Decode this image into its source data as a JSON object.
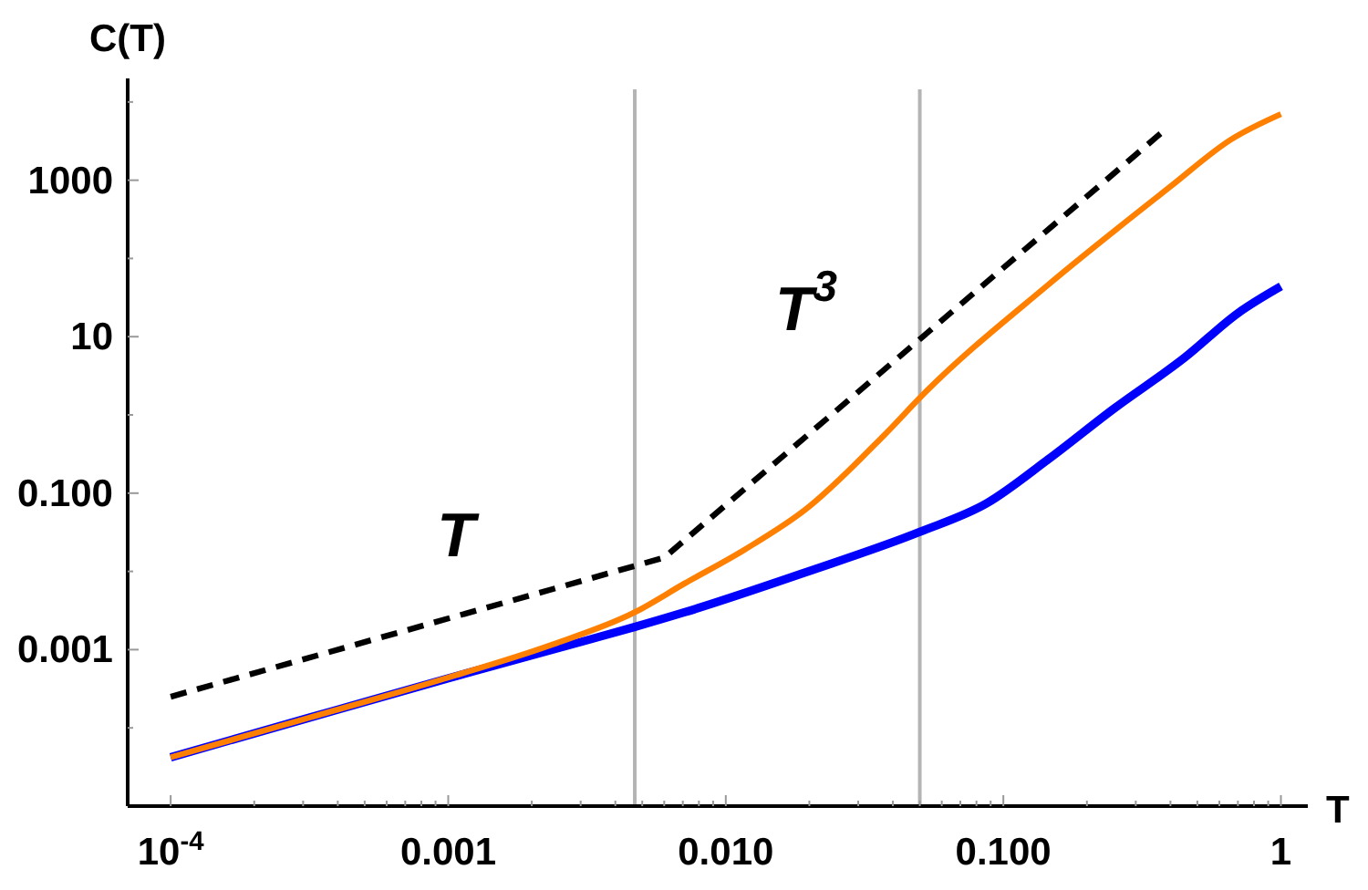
{
  "chart_data": {
    "type": "line",
    "xlabel": "T",
    "ylabel": "C(T)",
    "log": "xy",
    "grid": false,
    "marker": "none",
    "xlim": [
      7e-05,
      1.25
    ],
    "ylim": [
      1e-05,
      20000
    ],
    "xticks": [
      {
        "value": 0.0001,
        "label": "10$^{-4}$"
      },
      {
        "value": 0.0002,
        "label": null
      },
      {
        "value": 0.0003,
        "label": null
      },
      {
        "value": 0.0004,
        "label": null
      },
      {
        "value": 0.0005,
        "label": null
      },
      {
        "value": 0.0006,
        "label": null
      },
      {
        "value": 0.0007,
        "label": null
      },
      {
        "value": 0.0008,
        "label": null
      },
      {
        "value": 0.0009,
        "label": null
      },
      0.001,
      {
        "value": 0.002,
        "label": null
      },
      {
        "value": 0.003,
        "label": null
      },
      {
        "value": 0.004,
        "label": null
      },
      {
        "value": 0.005,
        "label": null
      },
      {
        "value": 0.006,
        "label": null
      },
      {
        "value": 0.007,
        "label": null
      },
      {
        "value": 0.008,
        "label": null
      },
      {
        "value": 0.009,
        "label": null
      },
      {
        "value": 0.01,
        "label": "0.010"
      },
      {
        "value": 0.02,
        "label": null
      },
      {
        "value": 0.03,
        "label": null
      },
      {
        "value": 0.04,
        "label": null
      },
      {
        "value": 0.05,
        "label": null
      },
      {
        "value": 0.06,
        "label": null
      },
      {
        "value": 0.07,
        "label": null
      },
      {
        "value": 0.08,
        "label": null
      },
      {
        "value": 0.09,
        "label": null
      },
      {
        "value": 0.1,
        "label": "0.100"
      },
      {
        "value": 0.2,
        "label": null
      },
      {
        "value": 0.3,
        "label": null
      },
      {
        "value": 0.4,
        "label": null
      },
      {
        "value": 0.5,
        "label": null
      },
      {
        "value": 0.6,
        "label": null
      },
      {
        "value": 0.7,
        "label": null
      },
      {
        "value": 0.8,
        "label": null
      },
      {
        "value": 0.9,
        "label": null
      },
      1
    ],
    "yticks": [
      {
        "value": 0.0001,
        "label": null
      },
      0.001,
      {
        "value": 0.01,
        "label": null
      },
      {
        "value": 0.1,
        "label": "0.100"
      },
      {
        "value": 1,
        "label": null
      },
      10,
      {
        "value": 100,
        "label": null
      },
      1000,
      {
        "value": 10000,
        "label": null
      }
    ],
    "series": [
      {
        "color": "#0000ff",
        "x": [
          0.0001,
          0.000316,
          0.001,
          0.00316,
          0.0047,
          0.0071,
          0.0195,
          0.05,
          0.087,
          0.145,
          0.25,
          0.45,
          0.7,
          1
        ],
        "values": [
          4.2e-05,
          0.000135,
          0.00043,
          0.00132,
          0.00195,
          0.003,
          0.0098,
          0.032,
          0.074,
          0.27,
          1.2,
          5.4,
          20,
          44
        ]
      },
      {
        "color": "#ff8000",
        "x": [
          0.0001,
          0.000316,
          0.001,
          0.0023,
          0.0047,
          0.0071,
          0.0117,
          0.0195,
          0.037,
          0.052,
          0.145,
          0.4,
          0.66,
          1
        ],
        "values": [
          4.2e-05,
          0.000135,
          0.00044,
          0.00112,
          0.003,
          0.007,
          0.019,
          0.063,
          0.54,
          1.9,
          46,
          830,
          3300,
          7000
        ]
      },
      {
        "color": "#000000",
        "line_style": "dashed",
        "x": [
          0.0001,
          0.006,
          0.37
        ],
        "values": [
          0.00025,
          0.015,
          4000
        ]
      }
    ],
    "ref_lines": [
      {
        "axis": "x",
        "value": 0.0047,
        "color": "#b4b4b4"
      },
      {
        "axis": "x",
        "value": 0.05,
        "color": "#b4b4b4"
      }
    ],
    "annotations": [
      "T",
      "T$^{3}$"
    ]
  }
}
